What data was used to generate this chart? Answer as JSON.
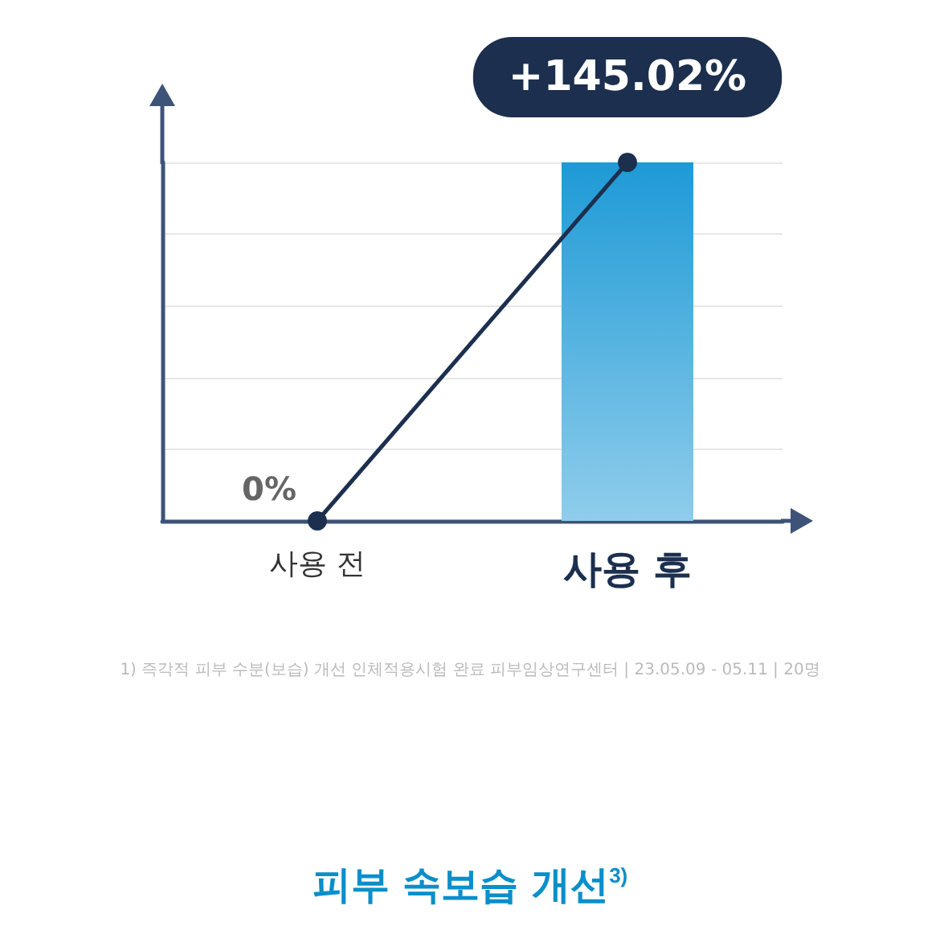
{
  "chart_data": {
    "type": "bar",
    "categories": [
      "사용 전",
      "사용 후"
    ],
    "series": [
      {
        "color": "#1e9ad6",
        "values": [
          null,
          145.02
        ]
      },
      {
        "type": "line",
        "color": "#1c2f4e",
        "values": [
          0,
          145.02
        ],
        "value_labels": [
          "0%",
          "+145.02%"
        ]
      }
    ],
    "ylim": [
      0,
      145.02
    ],
    "tick_labels": "x",
    "grid": "y",
    "marker": "circle",
    "line_style": "solid",
    "annotations": [
      "1) 즉각적 피부 수분(보습) 개선 인체적용시험 완료 피부임상연구센터 | 23.05.09 - 05.11 | 20명",
      "피부 속보습 개선$^{3)}$"
    ]
  }
}
